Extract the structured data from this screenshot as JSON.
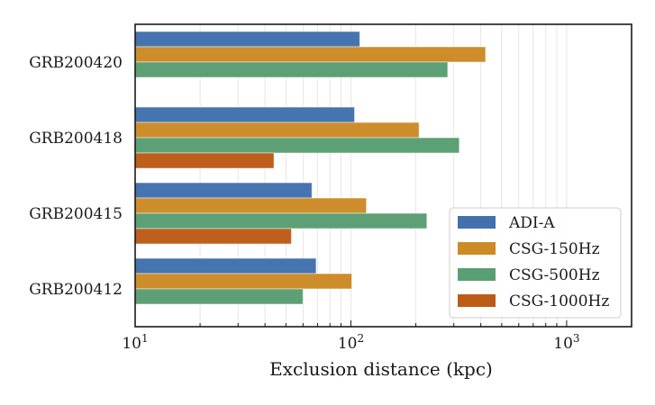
{
  "chart_data": {
    "type": "bar",
    "orientation": "horizontal",
    "title": "",
    "xlabel": "Exclusion distance (kpc)",
    "ylabel": "",
    "xscale": "log",
    "xlim": [
      10,
      2000
    ],
    "xticks": [
      {
        "value": 10,
        "base": "10",
        "exp": "1"
      },
      {
        "value": 100,
        "base": "10",
        "exp": "2"
      },
      {
        "value": 1000,
        "base": "10",
        "exp": "3"
      }
    ],
    "grid": true,
    "grid_axis": "x-minor-and-major",
    "legend_position": "bottom-right",
    "categories": [
      "GRB200420",
      "GRB200418",
      "GRB200415",
      "GRB200412"
    ],
    "series": [
      {
        "name": "ADI-A",
        "color": "#4271ae",
        "values": [
          110,
          104,
          66,
          69
        ]
      },
      {
        "name": "CSG-150Hz",
        "color": "#cc8b26",
        "values": [
          421,
          207,
          118,
          101
        ]
      },
      {
        "name": "CSG-500Hz",
        "color": "#5a9e73",
        "values": [
          281,
          318,
          225,
          60
        ]
      },
      {
        "name": "CSG-1000Hz",
        "color": "#bd5c17",
        "values": [
          null,
          44,
          53,
          null
        ]
      }
    ]
  }
}
